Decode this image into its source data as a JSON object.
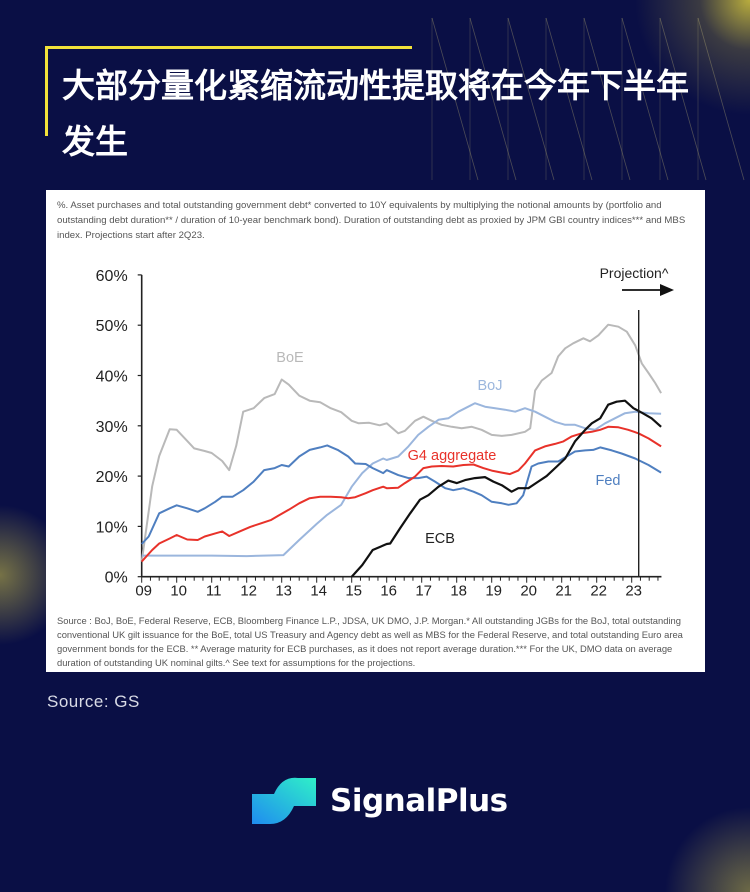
{
  "header": {
    "title": "大部分量化紧缩流动性提取将在今年下半年发生"
  },
  "chart_note": "%. Asset purchases and total outstanding government debt* converted to 10Y equivalents by multiplying the notional amounts by (portfolio and outstanding debt duration** / duration of 10-year benchmark bond). Duration of outstanding debt as proxied by JPM GBI country indices*** and MBS index. Projections start after 2Q23.",
  "chart_source_note": "Source : BoJ, BoE, Federal Reserve, ECB, Bloomberg Finance L.P., JDSA, UK DMO, J.P. Morgan.* All outstanding JGBs for the BoJ, total outstanding conventional UK gilt issuance for the BoE, total US Treasury and Agency debt as well as MBS for the Federal Reserve, and total outstanding Euro area government bonds for the ECB. ** Average maturity for ECB purchases, as it does not report average duration.*** For the UK, DMO data on average duration of outstanding UK nominal gilts.^ See text for assumptions for the projections.",
  "source_label": "Source: GS",
  "brand": {
    "name": "SignalPlus",
    "icon": "signalplus-logo-icon"
  },
  "colors": {
    "background": "#0a0f45",
    "accent": "#f3e23a"
  },
  "chart_data": {
    "type": "line",
    "title": "",
    "xlabel": "",
    "ylabel": "",
    "xlim": [
      2009,
      2023.85
    ],
    "ylim": [
      0,
      60
    ],
    "grid": false,
    "y_ticks": [
      "0%",
      "10%",
      "20%",
      "30%",
      "40%",
      "50%",
      "60%"
    ],
    "y_tick_values": [
      0,
      10,
      20,
      30,
      40,
      50,
      60
    ],
    "x_ticks": [
      "09",
      "10",
      "11",
      "12",
      "13",
      "14",
      "15",
      "16",
      "17",
      "18",
      "19",
      "20",
      "21",
      "22",
      "23"
    ],
    "x_tick_values": [
      2009,
      2010,
      2011,
      2012,
      2013,
      2014,
      2015,
      2016,
      2017,
      2018,
      2019,
      2020,
      2021,
      2022,
      2023
    ],
    "projection": {
      "label": "Projection^",
      "start": 2023.2
    },
    "series": [
      {
        "name": "BoE",
        "color": "#b9b9b9",
        "x": [
          2009.0,
          2009.3,
          2009.5,
          2009.8,
          2010.0,
          2010.3,
          2010.5,
          2010.8,
          2011.0,
          2011.3,
          2011.5,
          2011.7,
          2011.9,
          2012.2,
          2012.5,
          2012.8,
          2013.0,
          2013.2,
          2013.5,
          2013.8,
          2014.1,
          2014.4,
          2014.7,
          2015.0,
          2015.2,
          2015.5,
          2015.8,
          2016.0,
          2016.33,
          2016.52,
          2016.81,
          2017.05,
          2017.29,
          2017.57,
          2017.86,
          2018.14,
          2018.43,
          2018.71,
          2019.0,
          2019.29,
          2019.57,
          2019.95,
          2020.1,
          2020.24,
          2020.43,
          2020.71,
          2020.9,
          2021.1,
          2021.33,
          2021.62,
          2021.81,
          2022.05,
          2022.33,
          2022.62,
          2022.86,
          2023.1,
          2023.29,
          2023.48,
          2023.67,
          2023.84
        ],
        "y": [
          3,
          18,
          24,
          29.3,
          29.2,
          27,
          25.5,
          25,
          24.6,
          23,
          21.2,
          26,
          32.8,
          33.5,
          35.5,
          36.3,
          39.2,
          38.2,
          36,
          35,
          34.7,
          33.5,
          32.7,
          31,
          30.5,
          30.6,
          30.1,
          30.5,
          28.5,
          29,
          31,
          31.8,
          31,
          30.2,
          29.8,
          29.5,
          29.8,
          29.2,
          28.2,
          28,
          28.2,
          28.8,
          29.5,
          37,
          39,
          40.5,
          43.8,
          45.4,
          46.4,
          47.4,
          46.8,
          48,
          50.1,
          49.7,
          48.7,
          46,
          42.4,
          40.5,
          38.5,
          36.5
        ]
      },
      {
        "name": "BoJ",
        "color": "#9bb6dd",
        "x": [
          2009.0,
          2010.0,
          2011.0,
          2012.0,
          2013.05,
          2013.5,
          2014.0,
          2014.3,
          2014.7,
          2015.0,
          2015.3,
          2015.6,
          2015.9,
          2016.0,
          2016.33,
          2016.62,
          2016.9,
          2017.19,
          2017.48,
          2017.76,
          2018.05,
          2018.33,
          2018.52,
          2018.81,
          2019.1,
          2019.38,
          2019.67,
          2019.95,
          2020.24,
          2020.52,
          2020.81,
          2021.1,
          2021.38,
          2021.67,
          2021.95,
          2022.24,
          2022.52,
          2022.81,
          2023.1,
          2023.48,
          2023.84
        ],
        "y": [
          4.2,
          4.2,
          4.2,
          4.1,
          4.3,
          7.3,
          10.5,
          12.3,
          14.3,
          17.9,
          20.6,
          22.5,
          23.5,
          23.2,
          23.9,
          25.9,
          28.2,
          29.8,
          31.2,
          31.5,
          32.8,
          33.8,
          34.5,
          33.8,
          33.5,
          33.2,
          32.8,
          33.5,
          32.8,
          31.8,
          30.8,
          30.2,
          30.2,
          29.5,
          29.2,
          30.5,
          31.5,
          32.5,
          32.8,
          32.5,
          32.4
        ]
      },
      {
        "name": "Fed",
        "color": "#4f7fc0",
        "x": [
          2009.0,
          2009.2,
          2009.5,
          2009.8,
          2010.0,
          2010.3,
          2010.6,
          2010.8,
          2011.1,
          2011.3,
          2011.6,
          2011.9,
          2012.2,
          2012.5,
          2012.8,
          2013.0,
          2013.2,
          2013.5,
          2013.8,
          2014.1,
          2014.3,
          2014.6,
          2014.9,
          2015.1,
          2015.4,
          2015.6,
          2015.9,
          2016.0,
          2016.33,
          2016.62,
          2016.9,
          2017.14,
          2017.38,
          2017.67,
          2017.9,
          2018.19,
          2018.48,
          2018.71,
          2019.0,
          2019.29,
          2019.48,
          2019.71,
          2019.9,
          2020.14,
          2020.33,
          2020.62,
          2020.9,
          2021.14,
          2021.38,
          2021.67,
          2021.9,
          2022.1,
          2022.43,
          2022.71,
          2023.1,
          2023.48,
          2023.84
        ],
        "y": [
          6.5,
          8,
          12.6,
          13.6,
          14.2,
          13.6,
          12.9,
          13.6,
          14.9,
          15.9,
          15.9,
          17.2,
          18.9,
          21.2,
          21.6,
          22.2,
          21.9,
          23.9,
          25.2,
          25.7,
          26.1,
          25.2,
          23.9,
          22.5,
          22.4,
          21.6,
          20.6,
          21.2,
          20.2,
          19.6,
          19.6,
          19.9,
          18.9,
          17.6,
          17.2,
          17.6,
          16.9,
          16.2,
          14.9,
          14.6,
          14.3,
          14.6,
          16.2,
          21.9,
          22.5,
          22.9,
          22.9,
          23.9,
          24.9,
          25.1,
          25.2,
          25.7,
          25.1,
          24.5,
          23.5,
          22.2,
          20.7
        ]
      },
      {
        "name": "G4 aggregate",
        "color": "#e8322a",
        "x": [
          2009.0,
          2009.3,
          2009.5,
          2009.8,
          2010.0,
          2010.3,
          2010.6,
          2010.8,
          2011.1,
          2011.3,
          2011.5,
          2011.8,
          2012.1,
          2012.4,
          2012.7,
          2012.9,
          2013.2,
          2013.5,
          2013.8,
          2014.1,
          2014.4,
          2014.7,
          2014.9,
          2015.1,
          2015.4,
          2015.6,
          2015.9,
          2016.0,
          2016.33,
          2016.52,
          2016.81,
          2017.05,
          2017.29,
          2017.57,
          2017.9,
          2018.19,
          2018.48,
          2018.76,
          2019.0,
          2019.29,
          2019.52,
          2019.76,
          2019.95,
          2020.24,
          2020.52,
          2020.81,
          2021.05,
          2021.29,
          2021.57,
          2021.86,
          2022.1,
          2022.33,
          2022.62,
          2022.9,
          2023.19,
          2023.48,
          2023.84
        ],
        "y": [
          3,
          5.3,
          6.6,
          7.6,
          8.3,
          7.4,
          7.3,
          8,
          8.6,
          9,
          8.1,
          9,
          9.9,
          10.6,
          11.3,
          12.1,
          13.3,
          14.6,
          15.6,
          15.9,
          15.9,
          15.8,
          15.6,
          15.8,
          16.6,
          17.2,
          17.9,
          17.6,
          17.7,
          18.6,
          19.9,
          21.6,
          21.9,
          22,
          21.9,
          22.2,
          22.3,
          21.6,
          21.1,
          20.7,
          20.4,
          21.1,
          22.5,
          25.1,
          25.9,
          26.4,
          26.9,
          27.9,
          28.5,
          28.8,
          29.2,
          29.8,
          29.7,
          29.2,
          28.5,
          27.5,
          25.9
        ]
      },
      {
        "name": "ECB",
        "color": "#111111",
        "x": [
          2015.0,
          2015.3,
          2015.6,
          2016.0,
          2016.1,
          2016.38,
          2016.67,
          2016.95,
          2017.19,
          2017.48,
          2017.76,
          2018.0,
          2018.24,
          2018.52,
          2018.81,
          2019.05,
          2019.29,
          2019.57,
          2019.76,
          2020.05,
          2020.33,
          2020.57,
          2020.86,
          2021.1,
          2021.38,
          2021.67,
          2021.86,
          2022.1,
          2022.33,
          2022.57,
          2022.81,
          2023.05,
          2023.29,
          2023.57,
          2023.84
        ],
        "y": [
          0,
          2.3,
          5.3,
          6.5,
          6.6,
          9.6,
          12.6,
          15.3,
          16.2,
          17.9,
          19.1,
          18.6,
          19.2,
          19.6,
          19.8,
          18.9,
          18.2,
          16.9,
          17.6,
          17.6,
          18.9,
          20,
          21.9,
          23.5,
          26.9,
          29.2,
          30.5,
          31.5,
          34.2,
          34.8,
          35,
          33.5,
          32.6,
          31.5,
          29.8
        ]
      }
    ]
  }
}
